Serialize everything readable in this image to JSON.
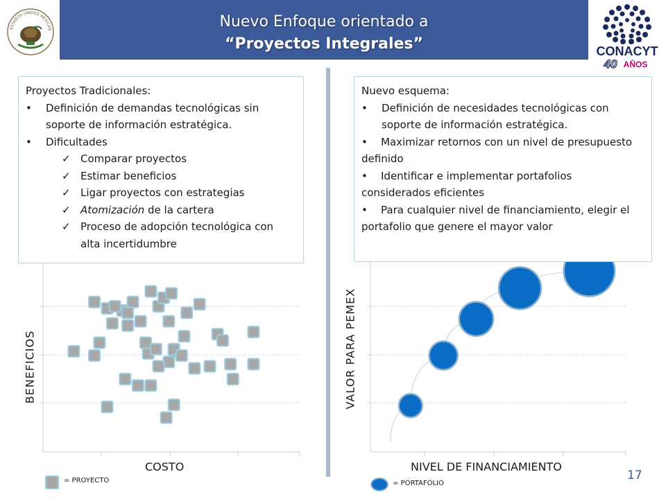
{
  "title": {
    "line1": "Nuevo Enfoque orientado a",
    "line2": "“Proyectos Integrales”"
  },
  "logos": {
    "seal_icon": "mexican-seal-icon",
    "seal_text": "ESTADOS UNIDOS MEXICANOS",
    "conacyt_name": "CONACYT",
    "conacyt_years": "40",
    "conacyt_anos": "AÑOS"
  },
  "left_box": {
    "heading": "Proyectos Tradicionales:",
    "bullet1": "Definición de demandas tecnológicas sin soporte de información estratégica.",
    "bullet2": "Dificultades",
    "checks": [
      "Comparar proyectos",
      "Estimar beneficios",
      "Ligar proyectos con estrategias",
      "Proceso de adopción tecnológica con alta incertidumbre"
    ],
    "check4_italic": "Atomización",
    "check4_rest": " de la cartera"
  },
  "right_box": {
    "heading": "Nuevo esquema:",
    "bullets": [
      "Definición de necesidades tecnológicas con soporte de información estratégica.",
      "Maximizar retornos con un nivel de presupuesto definido",
      "Identificar e implementar portafolios considerados eficientes",
      "Para cualquier nivel de financiamiento, elegir el portafolio que genere el mayor valor"
    ]
  },
  "chart_data": [
    {
      "type": "scatter",
      "xlabel": "COSTO",
      "ylabel": "BENEFICIOS",
      "legend": "= PROYECTO",
      "marker": "square",
      "color": "#a8a8a8",
      "points": [
        [
          1.2,
          2.35
        ],
        [
          2.0,
          2.25
        ],
        [
          3.2,
          1.7
        ],
        [
          4.2,
          1.55
        ],
        [
          2.0,
          3.5
        ],
        [
          2.2,
          2.55
        ],
        [
          2.5,
          3.35
        ],
        [
          2.7,
          3.0
        ],
        [
          3.1,
          3.3
        ],
        [
          3.5,
          3.5
        ],
        [
          3.3,
          3.25
        ],
        [
          2.8,
          3.4
        ],
        [
          3.8,
          3.05
        ],
        [
          4.5,
          3.4
        ],
        [
          4.7,
          3.6
        ],
        [
          4.2,
          3.75
        ],
        [
          5.0,
          3.7
        ],
        [
          4.1,
          2.3
        ],
        [
          4.0,
          2.55
        ],
        [
          3.3,
          2.95
        ],
        [
          4.9,
          2.1
        ],
        [
          4.4,
          2.4
        ],
        [
          4.5,
          2.0
        ],
        [
          5.1,
          2.35
        ],
        [
          4.9,
          3.05
        ],
        [
          5.1,
          1.1
        ],
        [
          5.5,
          2.7
        ],
        [
          6.1,
          3.45
        ],
        [
          5.6,
          3.25
        ],
        [
          5.1,
          2.4
        ],
        [
          5.4,
          2.25
        ],
        [
          5.9,
          1.95
        ],
        [
          6.5,
          2.0
        ],
        [
          6.8,
          2.75
        ],
        [
          7.0,
          2.6
        ],
        [
          7.3,
          2.05
        ],
        [
          7.4,
          1.7
        ],
        [
          8.2,
          2.05
        ],
        [
          8.2,
          2.8
        ],
        [
          2.5,
          1.05
        ],
        [
          3.7,
          1.55
        ],
        [
          4.8,
          0.8
        ]
      ]
    },
    {
      "type": "scatter",
      "xlabel": "NIVEL DE FINANCIAMIENTO",
      "ylabel": "VALOR PARA PEMEX",
      "legend": "= PORTAFOLIO",
      "marker": "circle",
      "color": "#0a6cc4",
      "points": [
        {
          "x": 1.1,
          "y": 1.2,
          "size": 1.0
        },
        {
          "x": 2.0,
          "y": 2.5,
          "size": 1.4
        },
        {
          "x": 2.9,
          "y": 3.45,
          "size": 1.85
        },
        {
          "x": 4.1,
          "y": 4.25,
          "size": 2.5
        },
        {
          "x": 6.0,
          "y": 4.7,
          "size": 3.2
        }
      ],
      "curve": true
    }
  ],
  "page_number": "17"
}
